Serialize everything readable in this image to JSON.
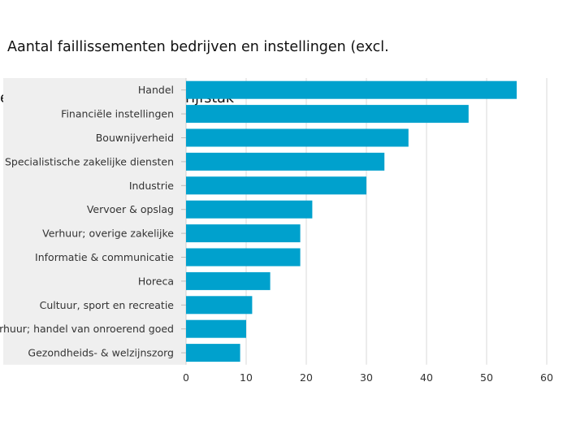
{
  "title_line1": "Aantal faillissementen bedrijven en instellingen (excl.",
  "title_line2": "eenmanszaken), naar bedrijfstak",
  "colors": {
    "bar": "#00a1cd",
    "label_bg": "#efefef",
    "grid": "#d9d9d9"
  },
  "chart_data": {
    "type": "bar",
    "orientation": "horizontal",
    "title": "Aantal faillissementen bedrijven en instellingen (excl. eenmanszaken), naar bedrijfstak",
    "categories": [
      "Handel",
      "Financiële instellingen",
      "Bouwnijverheid",
      "Specialistische zakelijke diensten",
      "Industrie",
      "Vervoer & opslag",
      "Verhuur; overige zakelijke",
      "Informatie & communicatie",
      "Horeca",
      "Cultuur, sport en recreatie",
      "Verhuur; handel van onroerend goed",
      "Gezondheids- & welzijnszorg"
    ],
    "values": [
      55,
      47,
      37,
      33,
      30,
      21,
      19,
      19,
      14,
      11,
      10,
      9
    ],
    "xlim": [
      0,
      60
    ],
    "ticks": [
      "0",
      "10",
      "20",
      "30",
      "40",
      "50",
      "60"
    ],
    "grid": true
  }
}
